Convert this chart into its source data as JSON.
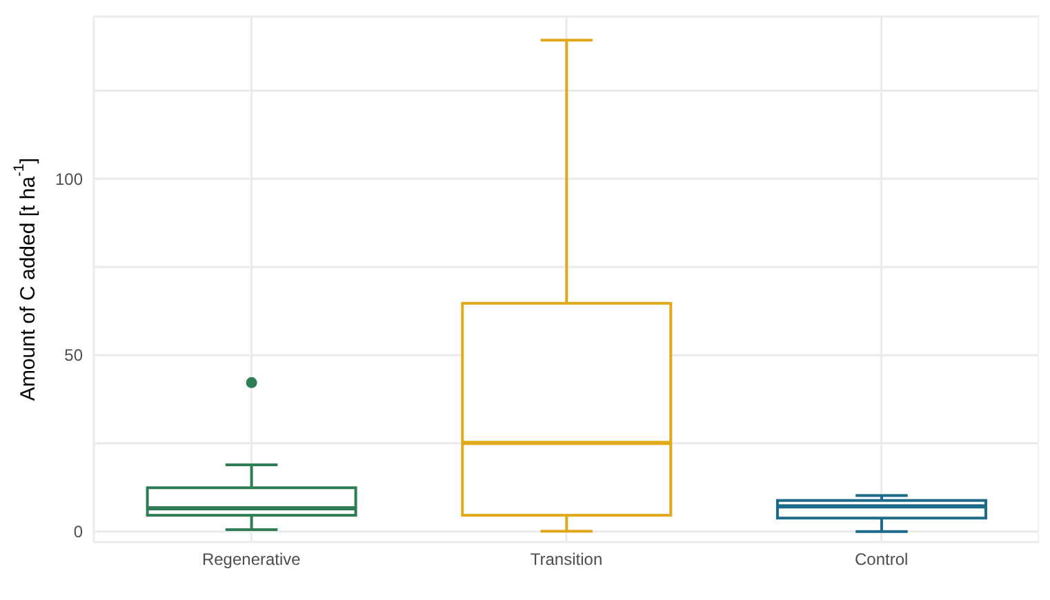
{
  "chart_data": {
    "type": "box",
    "ylabel": "Amount of C added [t ha$^{-1}$]",
    "categories": [
      "Regenerative",
      "Transition",
      "Control"
    ],
    "colors": [
      "#2e7d55",
      "#e0a91b",
      "#1b6a89"
    ],
    "boxes": [
      {
        "low": 0.5,
        "q1": 4.6,
        "median": 6.6,
        "q3": 12.4,
        "high": 18.9,
        "outliers": [
          42.2
        ]
      },
      {
        "low": 0.1,
        "q1": 4.6,
        "median": 25.1,
        "q3": 64.7,
        "high": 139.3
      },
      {
        "low": 0,
        "q1": 3.8,
        "median": 7.1,
        "q3": 8.8,
        "high": 10.2
      }
    ],
    "ylim": [
      -3,
      146
    ],
    "yticks": [
      0,
      {
        "value": 25,
        "label": null
      },
      50,
      {
        "value": 75,
        "label": null
      },
      100,
      {
        "value": 125,
        "label": null
      }
    ],
    "grid": true
  }
}
